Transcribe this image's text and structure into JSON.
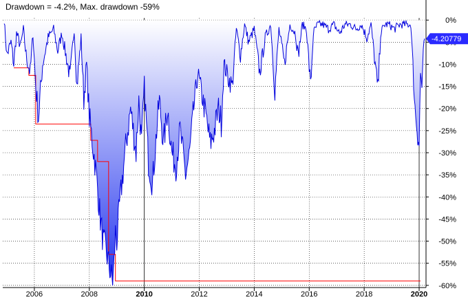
{
  "chart_data": {
    "type": "area",
    "title": "Drawdown = -4.2%, Max. drawdown -59%",
    "xlabel": "",
    "ylabel": "",
    "xlim": [
      2004.85,
      2020.25
    ],
    "ylim": [
      -60.5,
      0.5
    ],
    "y_ticks": [
      0,
      -5,
      -10,
      -15,
      -20,
      -25,
      -30,
      -35,
      -40,
      -45,
      -50,
      -55,
      -60
    ],
    "y_tick_labels": [
      "0%",
      "-5%",
      "-10%",
      "-15%",
      "-20%",
      "-25%",
      "-30%",
      "-35%",
      "-40%",
      "-45%",
      "-50%",
      "-55%",
      "-60%"
    ],
    "x_ticks": [
      2006,
      2008,
      2010,
      2012,
      2014,
      2016,
      2018,
      2020
    ],
    "x_tick_labels": [
      "2006",
      "2008",
      "2010",
      "2012",
      "2014",
      "2016",
      "2018",
      "2020"
    ],
    "x_bold_ticks": [
      "2010",
      "2020"
    ],
    "current_value_label": "-4.20779",
    "grid": true,
    "colors": {
      "line": "#0000dd",
      "fill_top": "#ffffff",
      "fill_bottom": "#2233ee",
      "max_drawdown_line": "#ff0000",
      "flag": "#2a2aff",
      "grid": "#000000"
    },
    "series": [
      {
        "kind": "drawdown",
        "x": [
          2004.9,
          2005.0,
          2005.15,
          2005.25,
          2005.35,
          2005.5,
          2005.6,
          2005.7,
          2005.85,
          2005.95,
          2006.05,
          2006.15,
          2006.3,
          2006.5,
          2006.7,
          2006.85,
          2007.0,
          2007.15,
          2007.3,
          2007.45,
          2007.55,
          2007.7,
          2007.8,
          2007.9,
          2008.0,
          2008.1,
          2008.2,
          2008.3,
          2008.4,
          2008.5,
          2008.6,
          2008.7,
          2008.8,
          2008.85,
          2008.9,
          2008.95,
          2009.0,
          2009.1,
          2009.2,
          2009.3,
          2009.4,
          2009.5,
          2009.6,
          2009.7,
          2009.8,
          2009.9,
          2010.0,
          2010.15,
          2010.3,
          2010.45,
          2010.55,
          2010.7,
          2010.85,
          2011.0,
          2011.15,
          2011.3,
          2011.5,
          2011.65,
          2011.8,
          2011.95,
          2012.1,
          2012.25,
          2012.4,
          2012.55,
          2012.7,
          2012.8,
          2012.9,
          2013.05,
          2013.2,
          2013.35,
          2013.5,
          2013.65,
          2013.8,
          2014.0,
          2014.2,
          2014.4,
          2014.6,
          2014.75,
          2014.9,
          2015.1,
          2015.3,
          2015.5,
          2015.6,
          2015.75,
          2015.9,
          2016.05,
          2016.15,
          2016.3,
          2016.5,
          2016.7,
          2016.9,
          2017.1,
          2017.3,
          2017.5,
          2017.7,
          2017.9,
          2018.1,
          2018.25,
          2018.4,
          2018.5,
          2018.6,
          2018.75,
          2018.9,
          2019.1,
          2019.3,
          2019.5,
          2019.7,
          2019.85,
          2020.0,
          2020.05,
          2020.1,
          2020.15,
          2020.2
        ],
        "y": [
          0,
          -8,
          -5,
          -10,
          -3,
          -6,
          -2,
          -8,
          -12,
          -3,
          -15,
          -22,
          -10,
          -4,
          -2,
          -7,
          -3,
          -8,
          -13,
          -2,
          -15,
          -4,
          -18,
          -10,
          -22,
          -27,
          -32,
          -38,
          -45,
          -50,
          -52,
          -55,
          -58,
          -59,
          -55,
          -48,
          -50,
          -42,
          -36,
          -30,
          -25,
          -20,
          -25,
          -30,
          -18,
          -28,
          -15,
          -32,
          -37,
          -25,
          -18,
          -28,
          -20,
          -30,
          -33,
          -25,
          -35,
          -30,
          -20,
          -12,
          -17,
          -22,
          -28,
          -25,
          -20,
          -23,
          -10,
          -13,
          -15,
          -2,
          -8,
          -1,
          -5,
          -2,
          -12,
          -4,
          -1,
          -16,
          -2,
          -10,
          -1,
          -3,
          -8,
          -1,
          -2,
          -15,
          -3,
          -1,
          -1,
          -2,
          -1,
          -3,
          -1,
          -1,
          -2,
          -1,
          -4,
          -1,
          -10,
          -16,
          -3,
          -1,
          -1,
          -2,
          -1,
          -1,
          -1,
          -20,
          -28,
          -12,
          -15,
          -8,
          -4.2
        ]
      },
      {
        "kind": "max_drawdown",
        "x": [
          2005.25,
          2005.8,
          2005.8,
          2006.05,
          2006.05,
          2008.05,
          2008.05,
          2008.3,
          2008.3,
          2008.7,
          2008.7,
          2008.95,
          2008.95,
          2020.05
        ],
        "y": [
          -10.8,
          -10.8,
          -12.5,
          -12.5,
          -23.5,
          -23.5,
          -27.2,
          -27.2,
          -32,
          -32,
          -53,
          -53,
          -59,
          -59
        ]
      }
    ]
  }
}
